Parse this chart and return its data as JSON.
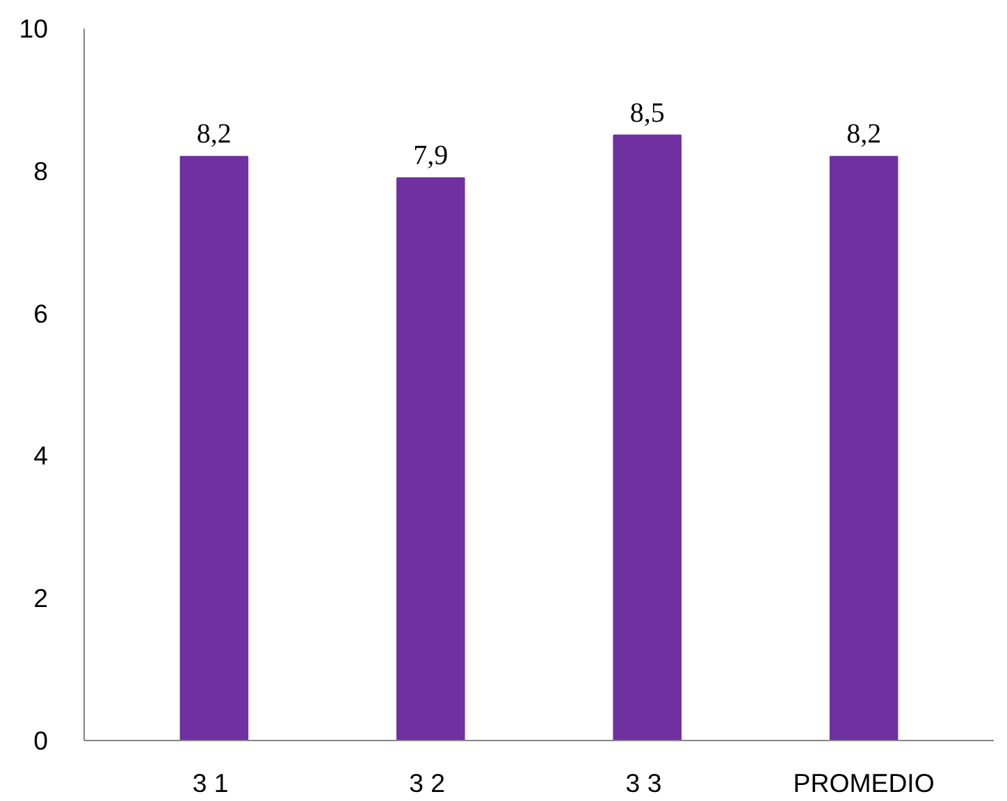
{
  "chart_data": {
    "type": "bar",
    "categories": [
      "3  1",
      "3  2",
      "3  3",
      "PROMEDIO"
    ],
    "values": [
      8.2,
      7.9,
      8.5,
      8.2
    ],
    "value_labels": [
      "8,2",
      "7,9",
      "8,5",
      "8,2"
    ],
    "color": "#7030a0",
    "ylim": [
      0,
      10
    ],
    "yticks": [
      0,
      2,
      4,
      6,
      8,
      10
    ],
    "grid": false
  }
}
